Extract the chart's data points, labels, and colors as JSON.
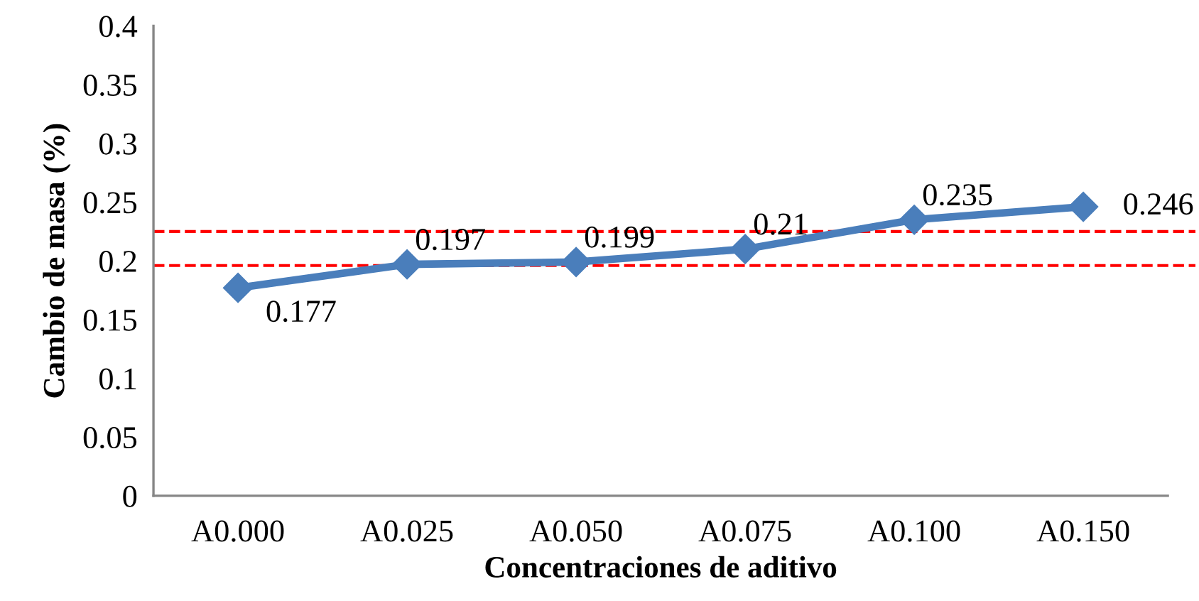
{
  "chart_data": {
    "type": "line",
    "xlabel": "Concentraciones de aditivo",
    "ylabel": "Cambio de masa (%)",
    "categories": [
      "A0.000",
      "A0.025",
      "A0.050",
      "A0.075",
      "A0.100",
      "A0.150"
    ],
    "series": [
      {
        "color": "#4a7ebb",
        "values": [
          0.177,
          0.197,
          0.199,
          0.21,
          0.235,
          0.246
        ]
      }
    ],
    "ylim": [
      0,
      0.4
    ],
    "yticks": [
      0,
      0.05,
      0.1,
      0.15,
      0.2,
      0.25,
      0.3,
      0.35,
      0.4
    ],
    "marker": "diamond",
    "line_style": "solid",
    "data_labels": true,
    "ref_lines": [
      {
        "axis": "y",
        "value": 0.196,
        "color": "#ff0000",
        "line_style": "dashed"
      },
      {
        "axis": "y",
        "value": 0.225,
        "color": "#ff0000",
        "line_style": "dashed"
      }
    ]
  }
}
